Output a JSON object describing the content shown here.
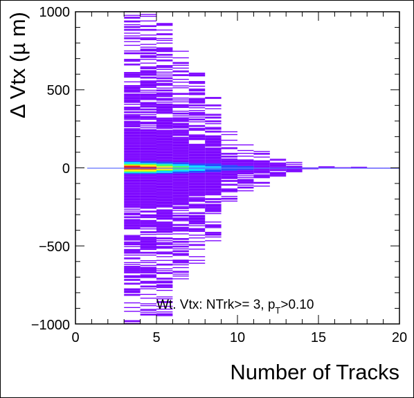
{
  "chart_data": {
    "type": "heatmap",
    "title": "",
    "xlabel": "Number of Tracks",
    "ylabel": "Δ Vtx (µ m)",
    "xlim": [
      0,
      20
    ],
    "ylim": [
      -1000,
      1000
    ],
    "x_ticks": [
      0,
      5,
      10,
      15,
      20
    ],
    "x_tick_labels": [
      "0",
      "5",
      "10",
      "15",
      "20"
    ],
    "y_ticks": [
      -1000,
      -500,
      0,
      500,
      1000
    ],
    "y_tick_labels": [
      "−1000",
      "−500",
      "0",
      "500",
      "1000"
    ],
    "grid": false,
    "legend": "none",
    "annotation": {
      "main": "Wt. Vtx: NTrk>= 3, p",
      "subscript": "T",
      "tail": ">0.10"
    },
    "colors": {
      "low": "#7a00ff",
      "mid_low": "#2040ff",
      "mid": "#00d8ff",
      "mid_high": "#40ff60",
      "high": "#ffee00",
      "peak": "#e01010",
      "center_line": "#6070ff"
    },
    "columns": [
      {
        "ntrk": 3,
        "spread": 1000,
        "core_intensity": 1.0
      },
      {
        "ntrk": 4,
        "spread": 1000,
        "core_intensity": 0.95
      },
      {
        "ntrk": 5,
        "spread": 980,
        "core_intensity": 0.75
      },
      {
        "ntrk": 6,
        "spread": 750,
        "core_intensity": 0.55
      },
      {
        "ntrk": 7,
        "spread": 620,
        "core_intensity": 0.4
      },
      {
        "ntrk": 8,
        "spread": 470,
        "core_intensity": 0.3
      },
      {
        "ntrk": 9,
        "spread": 240,
        "core_intensity": 0.22
      },
      {
        "ntrk": 10,
        "spread": 150,
        "core_intensity": 0.18
      },
      {
        "ntrk": 11,
        "spread": 120,
        "core_intensity": 0.15
      },
      {
        "ntrk": 12,
        "spread": 80,
        "core_intensity": 0.12
      },
      {
        "ntrk": 13,
        "spread": 40,
        "core_intensity": 0.1
      },
      {
        "ntrk": 14,
        "spread": 15,
        "core_intensity": 0.08
      },
      {
        "ntrk": 15,
        "spread": 8,
        "core_intensity": 0.06
      },
      {
        "ntrk": 16,
        "spread": 8,
        "core_intensity": 0.05
      },
      {
        "ntrk": 17,
        "spread": 5,
        "core_intensity": 0.04
      },
      {
        "ntrk": 18,
        "spread": 5,
        "core_intensity": 0.04
      },
      {
        "ntrk": 19,
        "spread": 5,
        "core_intensity": 0.03
      }
    ]
  }
}
